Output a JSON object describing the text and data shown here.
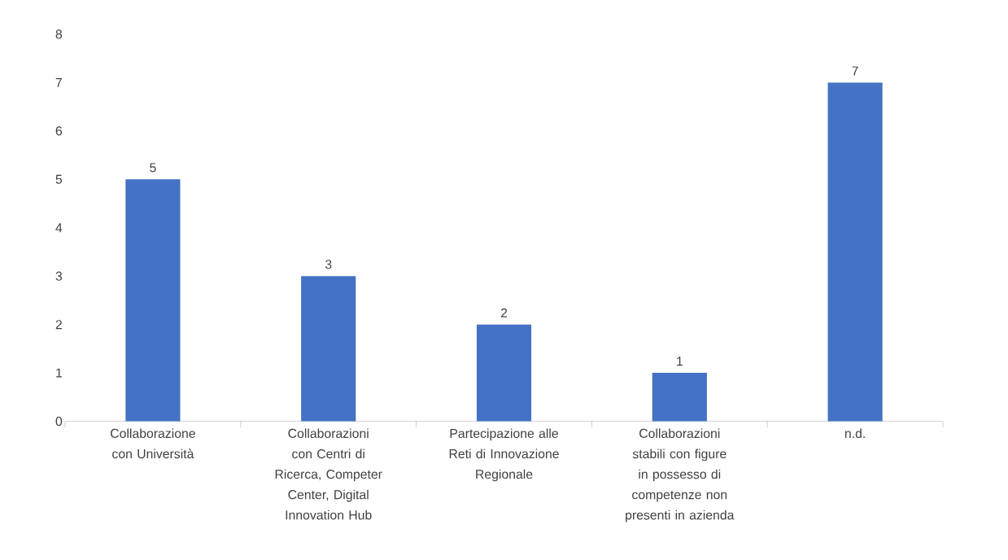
{
  "chart_data": {
    "type": "bar",
    "categories": [
      "Collaborazione con Università",
      "Collaborazioni con Centri di Ricerca, Competer Center, Digital Innovation Hub",
      "Partecipazione alle Reti di Innovazione Regionale",
      "Collaborazioni stabili con figure in possesso di competenze non presenti in azienda",
      "n.d."
    ],
    "values": [
      5,
      3,
      2,
      1,
      7
    ],
    "color": "#4472c4",
    "ylim": [
      0,
      8
    ],
    "yticks": [
      0,
      1,
      2,
      3,
      4,
      5,
      6,
      7,
      8
    ],
    "data_labels": true
  }
}
